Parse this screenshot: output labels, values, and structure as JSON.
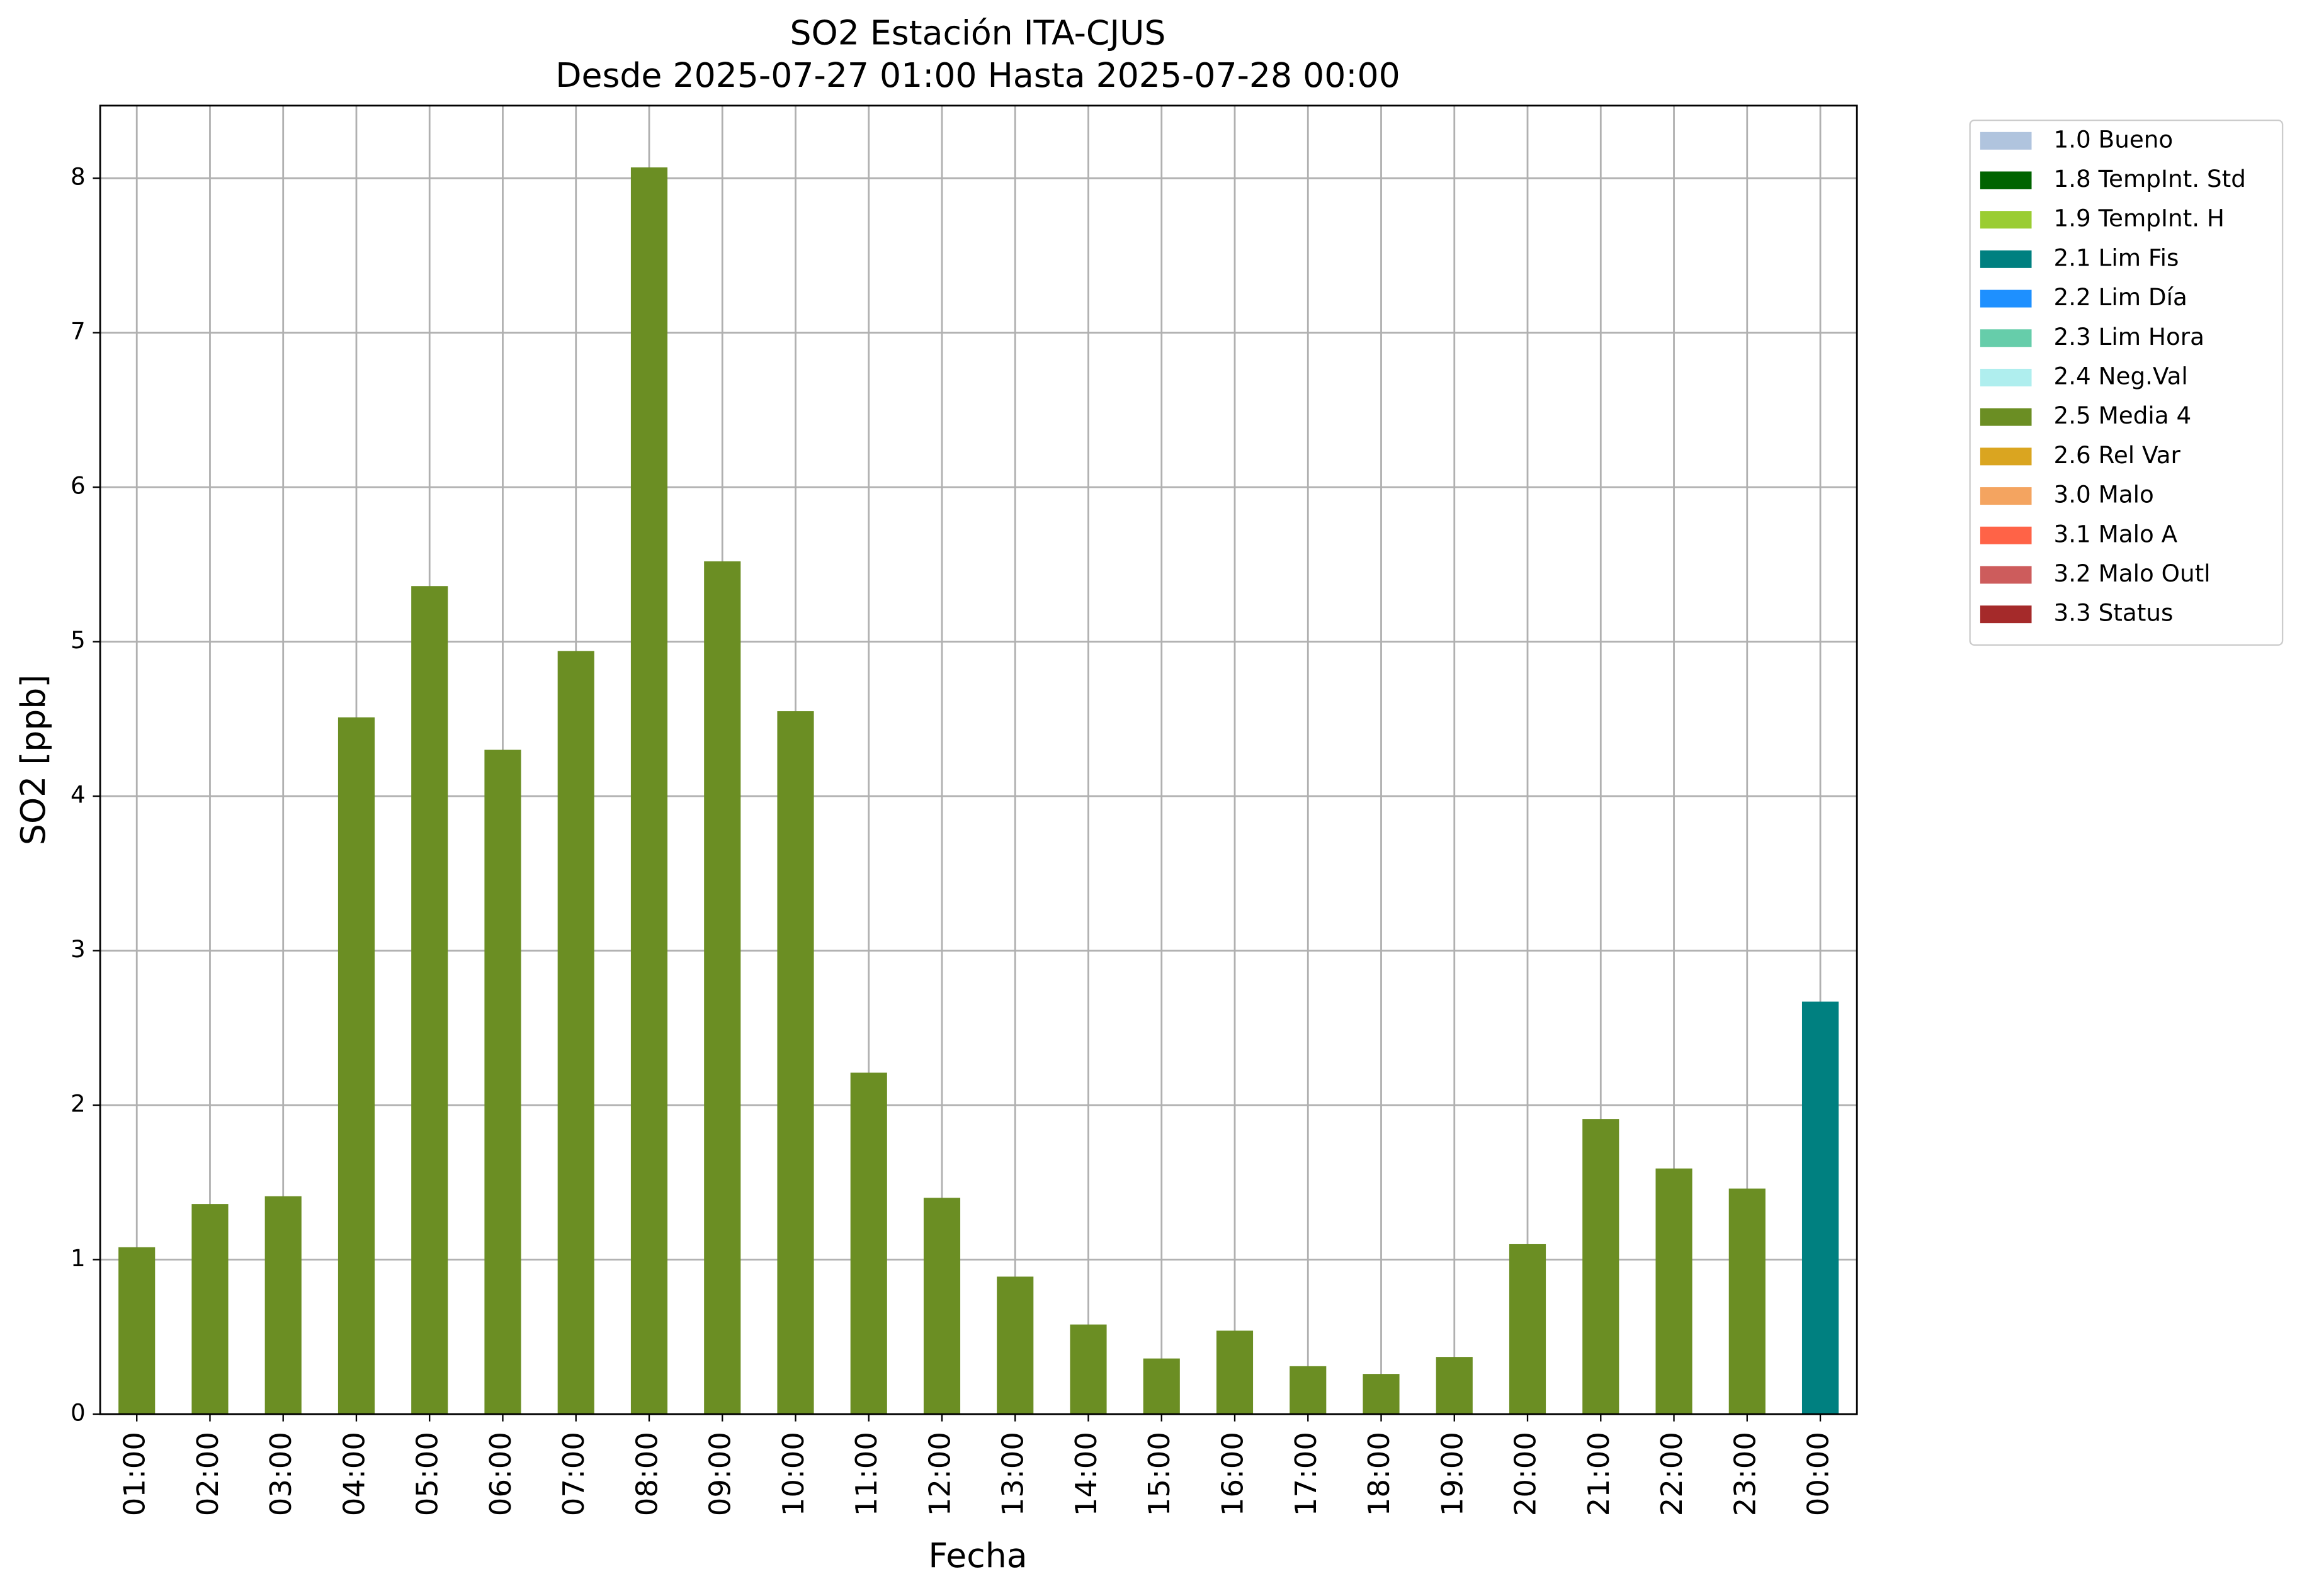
{
  "chart_data": {
    "type": "bar",
    "stacked": true,
    "title": "SO2 Estación ITA-CJUS",
    "subtitle": "Desde 2025-07-27 01:00 Hasta 2025-07-28 00:00",
    "x_label": "Fecha",
    "y_label": "SO2 [ppb]",
    "categories": [
      "01:00",
      "02:00",
      "03:00",
      "04:00",
      "05:00",
      "06:00",
      "07:00",
      "08:00",
      "09:00",
      "10:00",
      "11:00",
      "12:00",
      "13:00",
      "14:00",
      "15:00",
      "16:00",
      "17:00",
      "18:00",
      "19:00",
      "20:00",
      "21:00",
      "22:00",
      "23:00",
      "00:00"
    ],
    "series": [
      {
        "name": "1.0 Bueno",
        "color": "#b0c4de",
        "values": [
          null,
          null,
          null,
          null,
          null,
          null,
          null,
          null,
          null,
          null,
          null,
          null,
          null,
          null,
          null,
          null,
          null,
          null,
          null,
          null,
          null,
          null,
          null,
          null
        ]
      },
      {
        "name": "1.8 TempInt. Std",
        "color": "#006400",
        "values": [
          null,
          null,
          null,
          null,
          null,
          null,
          null,
          null,
          null,
          null,
          null,
          null,
          null,
          null,
          null,
          null,
          null,
          null,
          null,
          null,
          null,
          null,
          null,
          null
        ]
      },
      {
        "name": "1.9 TempInt. H",
        "color": "#9acd32",
        "values": [
          null,
          null,
          null,
          null,
          null,
          null,
          null,
          null,
          null,
          null,
          null,
          null,
          null,
          null,
          null,
          null,
          null,
          null,
          null,
          null,
          null,
          null,
          null,
          null
        ]
      },
      {
        "name": "2.1 Lim Fis",
        "color": "#008080",
        "values": [
          null,
          null,
          null,
          null,
          null,
          null,
          null,
          null,
          null,
          null,
          null,
          null,
          null,
          null,
          null,
          null,
          null,
          null,
          null,
          null,
          null,
          null,
          null,
          2.67
        ]
      },
      {
        "name": "2.2 Lim Día",
        "color": "#1e90ff",
        "values": [
          null,
          null,
          null,
          null,
          null,
          null,
          null,
          null,
          null,
          null,
          null,
          null,
          null,
          null,
          null,
          null,
          null,
          null,
          null,
          null,
          null,
          null,
          null,
          null
        ]
      },
      {
        "name": "2.3 Lim Hora",
        "color": "#66cdaa",
        "values": [
          null,
          null,
          null,
          null,
          null,
          null,
          null,
          null,
          null,
          null,
          null,
          null,
          null,
          null,
          null,
          null,
          null,
          null,
          null,
          null,
          null,
          null,
          null,
          null
        ]
      },
      {
        "name": "2.4 Neg.Val",
        "color": "#afeeee",
        "values": [
          null,
          null,
          null,
          null,
          null,
          null,
          null,
          null,
          null,
          null,
          null,
          null,
          null,
          null,
          null,
          null,
          null,
          null,
          null,
          null,
          null,
          null,
          null,
          null
        ]
      },
      {
        "name": "2.5 Media 4",
        "color": "#6b8e23",
        "values": [
          1.08,
          1.36,
          1.41,
          4.51,
          5.36,
          4.3,
          4.94,
          8.07,
          5.52,
          4.55,
          2.21,
          1.4,
          0.89,
          0.58,
          0.36,
          0.54,
          0.31,
          0.26,
          0.37,
          1.1,
          1.91,
          1.59,
          1.46,
          null
        ]
      },
      {
        "name": "2.6 Rel Var",
        "color": "#daa520",
        "values": [
          null,
          null,
          null,
          null,
          null,
          null,
          null,
          null,
          null,
          null,
          null,
          null,
          null,
          null,
          null,
          null,
          null,
          null,
          null,
          null,
          null,
          null,
          null,
          null
        ]
      },
      {
        "name": "3.0 Malo",
        "color": "#f4a460",
        "values": [
          null,
          null,
          null,
          null,
          null,
          null,
          null,
          null,
          null,
          null,
          null,
          null,
          null,
          null,
          null,
          null,
          null,
          null,
          null,
          null,
          null,
          null,
          null,
          null
        ]
      },
      {
        "name": "3.1 Malo A",
        "color": "#ff6347",
        "values": [
          null,
          null,
          null,
          null,
          null,
          null,
          null,
          null,
          null,
          null,
          null,
          null,
          null,
          null,
          null,
          null,
          null,
          null,
          null,
          null,
          null,
          null,
          null,
          null
        ]
      },
      {
        "name": "3.2 Malo Outl",
        "color": "#cd5c5c",
        "values": [
          null,
          null,
          null,
          null,
          null,
          null,
          null,
          null,
          null,
          null,
          null,
          null,
          null,
          null,
          null,
          null,
          null,
          null,
          null,
          null,
          null,
          null,
          null,
          null
        ]
      },
      {
        "name": "3.3 Status",
        "color": "#a52a2a",
        "values": [
          null,
          null,
          null,
          null,
          null,
          null,
          null,
          null,
          null,
          null,
          null,
          null,
          null,
          null,
          null,
          null,
          null,
          null,
          null,
          null,
          null,
          null,
          null,
          null
        ]
      }
    ],
    "ylim": [
      0,
      8.47
    ],
    "yticks": [
      0,
      1,
      2,
      3,
      4,
      5,
      6,
      7,
      8
    ],
    "grid": true,
    "legend": "outside-upper-right"
  }
}
